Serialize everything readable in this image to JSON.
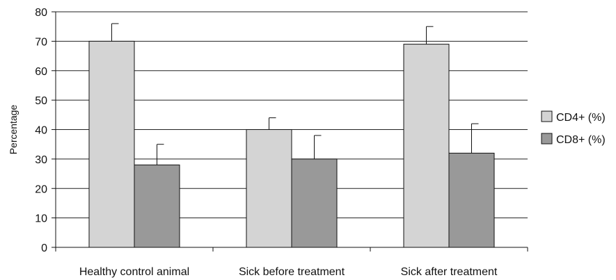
{
  "chart_data": {
    "type": "bar",
    "categories": [
      "Healthy control animal",
      "Sick before treatment",
      "Sick after treatment"
    ],
    "series": [
      {
        "name": "CD4+ (%)",
        "values": [
          70,
          40,
          69
        ],
        "error": [
          6,
          4,
          6
        ],
        "color": "#d4d4d4"
      },
      {
        "name": "CD8+ (%)",
        "values": [
          28,
          30,
          32
        ],
        "error": [
          7,
          8,
          10
        ],
        "color": "#999999"
      }
    ],
    "title": "",
    "xlabel": "",
    "ylabel": "Percentage",
    "ylim": [
      0,
      80
    ],
    "yticks": [
      0,
      10,
      20,
      30,
      40,
      50,
      60,
      70,
      80
    ],
    "grid": true,
    "legend_position": "right"
  }
}
